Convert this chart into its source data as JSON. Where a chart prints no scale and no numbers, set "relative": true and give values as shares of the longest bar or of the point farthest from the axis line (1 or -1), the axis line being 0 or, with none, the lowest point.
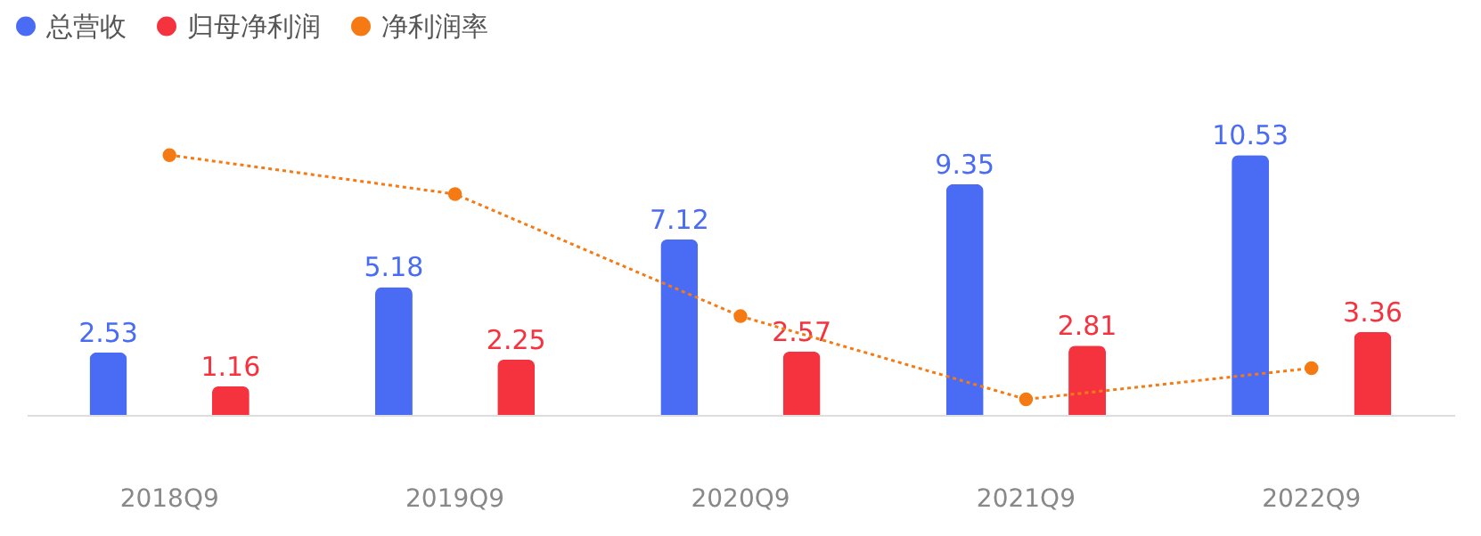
{
  "chart_data": [
    {
      "type": "bar",
      "categories": [
        "2018Q9",
        "2019Q9",
        "2020Q9",
        "2021Q9",
        "2022Q9"
      ],
      "series": [
        {
          "name": "总营收",
          "color": "#4a6cf4",
          "values": [
            2.53,
            5.18,
            7.12,
            9.35,
            10.53
          ]
        },
        {
          "name": "归母净利润",
          "color": "#f5333f",
          "values": [
            1.16,
            2.25,
            2.57,
            2.81,
            3.36
          ]
        }
      ],
      "data_labels": true,
      "legend": "top left",
      "grid": false
    },
    {
      "type": "line",
      "relative": true,
      "categories": [
        "2018Q9",
        "2019Q9",
        "2020Q9",
        "2021Q9",
        "2022Q9"
      ],
      "series": [
        {
          "name": "净利润率",
          "color": "#f57a14",
          "values": [
            1,
            0.85,
            0.38,
            0.06,
            0.18
          ]
        }
      ],
      "marker": "circle",
      "line_style": "dotted",
      "legend": "top left",
      "tick_labels": false
    }
  ]
}
